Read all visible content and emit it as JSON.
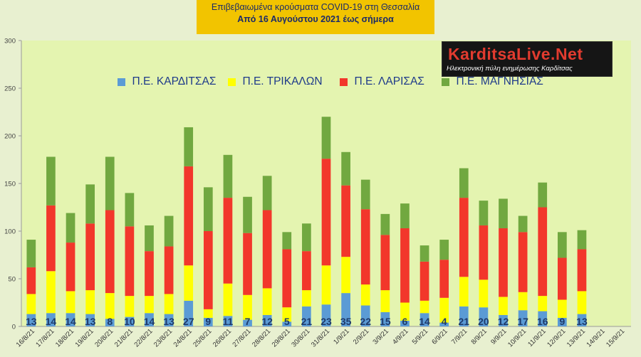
{
  "header": {
    "line1": "Επιβεβαιωμένα κρούσματα COVID-19 στη Θεσσαλία",
    "line2": "Από 16 Αυγούστου 2021 έως σήμερα"
  },
  "logo": {
    "name": "KarditsaLive.Net",
    "tagline": "Ηλεκτρονική πύλη ενημέρωσης Καρδίτσας"
  },
  "colors": {
    "background": "#e8f0d0",
    "plot": "#e4f4b0",
    "karditsa": "#5b9bd5",
    "trikala": "#ffff00",
    "larisa": "#f2372b",
    "magnisia": "#71a840",
    "label": "#1e3a6a"
  },
  "chart_data": {
    "type": "bar",
    "stacked": true,
    "ylim": [
      0,
      300
    ],
    "yticks": [
      0,
      50,
      100,
      150,
      200,
      250,
      300
    ],
    "grid": false,
    "legend_position": "top",
    "data_labels_series": "Π.Ε. ΚΑΡΔΙΤΣΑΣ",
    "categories": [
      "16/8/21",
      "17/8/21",
      "18/8/21",
      "19/8/21",
      "20/8/21",
      "21/8/21",
      "22/8/21",
      "23/8/21",
      "24/8/21",
      "25/8/21",
      "26/8/21",
      "27/8/21",
      "28/8/21",
      "29/8/21",
      "30/8/21",
      "31/8/21",
      "1/9/21",
      "2/9/21",
      "3/9/21",
      "4/9/21",
      "5/9/21",
      "6/9/21",
      "7/9/21",
      "8/9/21",
      "9/9/21",
      "10/9/21",
      "11/9/21",
      "12/9/21",
      "13/9/21",
      "14/9/21",
      "15/9/21"
    ],
    "series": [
      {
        "name": "Π.Ε. ΚΑΡΔΙΤΣΑΣ",
        "color": "#5b9bd5",
        "values": [
          13,
          14,
          14,
          13,
          8,
          10,
          14,
          13,
          27,
          9,
          11,
          7,
          12,
          5,
          21,
          23,
          35,
          22,
          15,
          6,
          14,
          4,
          21,
          20,
          12,
          17,
          16,
          9,
          13,
          0,
          0
        ]
      },
      {
        "name": "Π.Ε. ΤΡΙΚΑΛΩΝ",
        "color": "#ffff00",
        "values": [
          21,
          44,
          23,
          25,
          27,
          22,
          18,
          21,
          37,
          9,
          34,
          26,
          28,
          15,
          17,
          41,
          38,
          22,
          23,
          19,
          13,
          26,
          31,
          29,
          19,
          19,
          16,
          19,
          24,
          0,
          0
        ]
      },
      {
        "name": "Π.Ε. ΛΑΡΙΣΑΣ",
        "color": "#f2372b",
        "values": [
          28,
          69,
          51,
          70,
          87,
          73,
          47,
          50,
          104,
          82,
          90,
          65,
          82,
          61,
          41,
          112,
          75,
          79,
          58,
          78,
          41,
          40,
          83,
          57,
          72,
          63,
          93,
          44,
          44,
          0,
          0
        ]
      },
      {
        "name": "Π.Ε. ΜΑΓΝΗΣΙΑΣ",
        "color": "#71a840",
        "values": [
          29,
          51,
          31,
          41,
          56,
          35,
          27,
          32,
          41,
          46,
          45,
          38,
          36,
          18,
          29,
          44,
          35,
          31,
          22,
          26,
          17,
          21,
          31,
          26,
          31,
          17,
          26,
          27,
          20,
          0,
          0
        ]
      }
    ],
    "data_labels": [
      "13",
      "14",
      "14",
      "13",
      "8",
      "10",
      "14",
      "13",
      "27",
      "9",
      "11",
      "7",
      "12",
      "5",
      "21",
      "23",
      "35",
      "22",
      "15",
      "6",
      "14",
      "4",
      "21",
      "20",
      "12",
      "17",
      "16",
      "9",
      "13",
      "",
      ""
    ]
  }
}
